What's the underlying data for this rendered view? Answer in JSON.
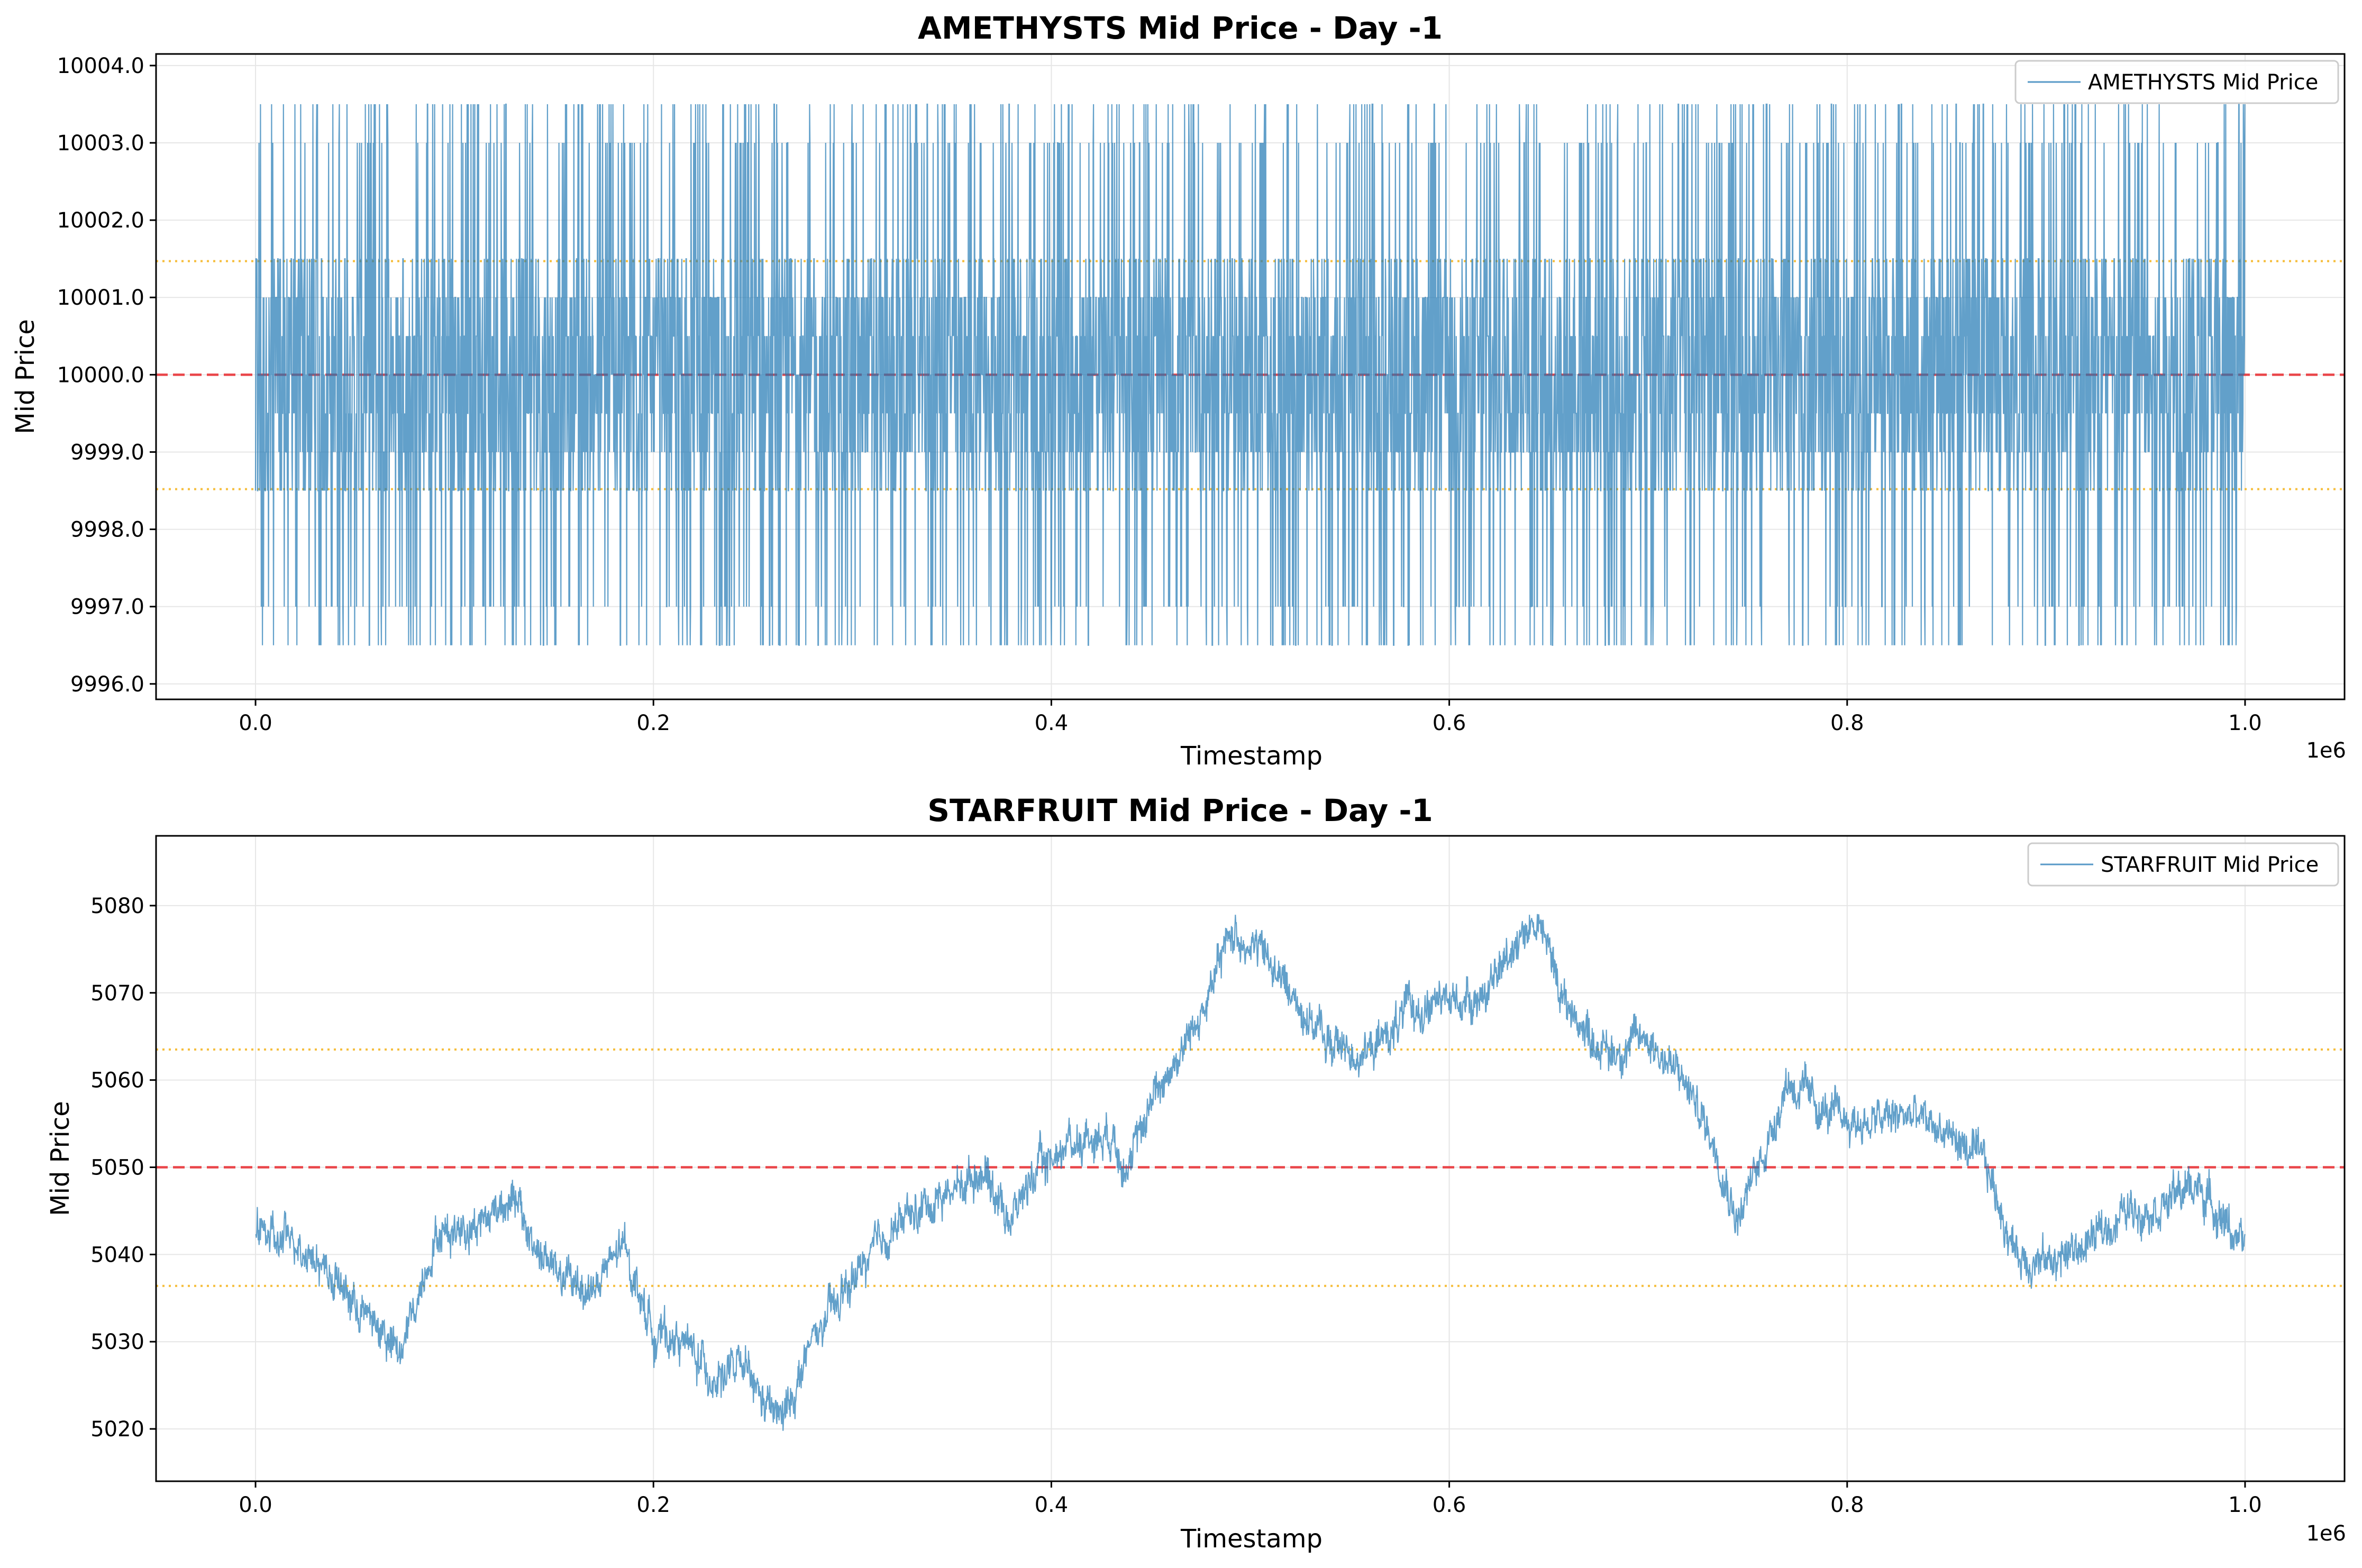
{
  "colors": {
    "series": "#1f77b4",
    "mean_line": "#e8272c",
    "band_line": "#f5b31a",
    "grid": "#e6e6e6",
    "axes": "#000000"
  },
  "chart_data": [
    {
      "type": "line",
      "title": "AMETHYSTS Mid Price - Day -1",
      "xlabel": "Timestamp",
      "ylabel": "Mid Price",
      "x_offset_label": "1e6",
      "xlim": [
        -50000,
        1050000
      ],
      "ylim": [
        9995.8,
        10004.15
      ],
      "xticks": [
        0.0,
        0.2,
        0.4,
        0.6,
        0.8,
        1.0
      ],
      "xtick_labels": [
        "0.0",
        "0.2",
        "0.4",
        "0.6",
        "0.8",
        "1.0"
      ],
      "yticks": [
        9996.0,
        9997.0,
        9998.0,
        9999.0,
        10000.0,
        10001.0,
        10002.0,
        10003.0,
        10004.0
      ],
      "ytick_labels": [
        "9996.0",
        "9997.0",
        "9998.0",
        "9999.0",
        "10000.0",
        "10001.0",
        "10002.0",
        "10003.0",
        "10004.0"
      ],
      "grid": true,
      "legend_position": "top-right",
      "series": [
        {
          "name": "AMETHYSTS Mid Price",
          "style": "noisy",
          "x_start": 0,
          "x_end": 999900,
          "center": 10000.0,
          "min": 9996.5,
          "max": 10003.5,
          "discrete_values": [
            9996.5,
            9997.0,
            9998.5,
            9999.0,
            9999.5,
            10000.0,
            10000.5,
            10001.0,
            10001.5,
            10003.0,
            10003.5
          ]
        }
      ],
      "hlines": [
        {
          "y": 10000.0,
          "style": "dashed",
          "color_key": "mean_line"
        },
        {
          "y": 10001.47,
          "style": "dotted",
          "color_key": "band_line"
        },
        {
          "y": 9998.52,
          "style": "dotted",
          "color_key": "band_line"
        }
      ]
    },
    {
      "type": "line",
      "title": "STARFRUIT Mid Price - Day -1",
      "xlabel": "Timestamp",
      "ylabel": "Mid Price",
      "x_offset_label": "1e6",
      "xlim": [
        -50000,
        1050000
      ],
      "ylim": [
        5014,
        5088
      ],
      "xticks": [
        0.0,
        0.2,
        0.4,
        0.6,
        0.8,
        1.0
      ],
      "xtick_labels": [
        "0.0",
        "0.2",
        "0.4",
        "0.6",
        "0.8",
        "1.0"
      ],
      "yticks": [
        5020,
        5030,
        5040,
        5050,
        5060,
        5070,
        5080
      ],
      "ytick_labels": [
        "5020",
        "5030",
        "5040",
        "5050",
        "5060",
        "5070",
        "5080"
      ],
      "grid": true,
      "legend_position": "top-right",
      "series": [
        {
          "name": "STARFRUIT Mid Price",
          "style": "trend",
          "noise": 1.3,
          "x": [
            0,
            10000,
            20000,
            30000,
            40000,
            55000,
            65000,
            72000,
            80000,
            90000,
            100000,
            115000,
            128000,
            140000,
            155000,
            170000,
            185000,
            200000,
            215000,
            230000,
            245000,
            255000,
            265000,
            280000,
            300000,
            320000,
            340000,
            355000,
            365000,
            380000,
            390000,
            410000,
            430000,
            440000,
            450000,
            465000,
            480000,
            490000,
            505000,
            520000,
            540000,
            560000,
            580000,
            600000,
            620000,
            635000,
            645000,
            660000,
            680000,
            700000,
            720000,
            735000,
            745000,
            760000,
            770000,
            790000,
            810000,
            830000,
            850000,
            870000,
            885000,
            900000,
            920000,
            940000,
            960000,
            975000,
            990000,
            999900
          ],
          "y": [
            5044,
            5041,
            5042,
            5040,
            5037,
            5033,
            5031,
            5028,
            5034,
            5042,
            5043,
            5044,
            5047,
            5041,
            5037,
            5036,
            5041,
            5031,
            5030,
            5026,
            5027,
            5023,
            5021,
            5030,
            5037,
            5043,
            5046,
            5048,
            5050,
            5044,
            5049,
            5053,
            5054,
            5050,
            5058,
            5063,
            5070,
            5077,
            5075,
            5070,
            5064,
            5063,
            5068,
            5069,
            5070,
            5077,
            5078,
            5068,
            5063,
            5065,
            5059,
            5052,
            5044,
            5053,
            5060,
            5056,
            5055,
            5056,
            5054,
            5050,
            5040,
            5039,
            5041,
            5045,
            5046,
            5048,
            5044,
            5040
          ]
        }
      ],
      "hlines": [
        {
          "y": 5050.0,
          "style": "dashed",
          "color_key": "mean_line"
        },
        {
          "y": 5063.5,
          "style": "dotted",
          "color_key": "band_line"
        },
        {
          "y": 5036.4,
          "style": "dotted",
          "color_key": "band_line"
        }
      ]
    }
  ]
}
